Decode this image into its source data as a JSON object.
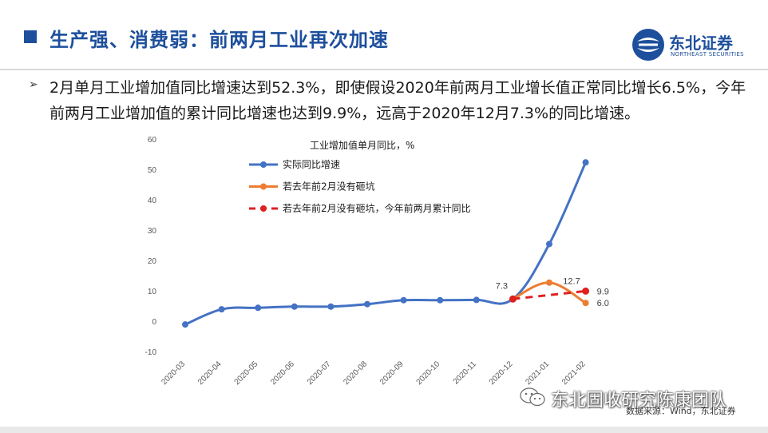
{
  "header": {
    "title": "生产强、消费弱：前两月工业再次加速",
    "logo_cn": "东北证券",
    "logo_en": "NORTHEAST SECURITIES"
  },
  "paragraph": "2月单月工业增加值同比增速达到52.3%，即使假设2020年前两月工业增长值正常同比增长6.5%，今年前两月工业增加值的累计同比增速也达到9.9%，远高于2020年12月7.3%的同比增速。",
  "chart_data": {
    "type": "line",
    "title": "工业增加值单月同比，%",
    "categories": [
      "2020-03",
      "2020-04",
      "2020-05",
      "2020-06",
      "2020-07",
      "2020-08",
      "2020-09",
      "2020-10",
      "2020-11",
      "2020-12",
      "2021-01",
      "2021-02"
    ],
    "ylim": [
      -10,
      60
    ],
    "yticks": [
      "-10",
      "0",
      "10",
      "20",
      "30",
      "40",
      "50",
      "60"
    ],
    "grid": false,
    "legend_position": "top-left",
    "series": [
      {
        "name": "实际同比增速",
        "color": "#4472c4",
        "style": "solid",
        "values": [
          -1.1,
          3.9,
          4.4,
          4.8,
          4.8,
          5.6,
          6.9,
          6.9,
          7.0,
          7.3,
          25.4,
          52.3
        ]
      },
      {
        "name": "若去年前2月没有砸坑",
        "color": "#ed7d31",
        "style": "solid",
        "values": [
          null,
          null,
          null,
          null,
          null,
          null,
          null,
          null,
          null,
          7.3,
          12.7,
          6.0
        ]
      },
      {
        "name": "若去年前2月没有砸坑，今年前两月累计同比",
        "color": "#e02020",
        "style": "dashed",
        "values": [
          null,
          null,
          null,
          null,
          null,
          null,
          null,
          null,
          null,
          7.3,
          null,
          9.9
        ]
      }
    ],
    "data_labels": [
      "7.3",
      "12.7",
      "9.9",
      "6.0"
    ]
  },
  "source": "数据来源：Wind，东北证券",
  "watermark": "东北固收研究陈康团队"
}
